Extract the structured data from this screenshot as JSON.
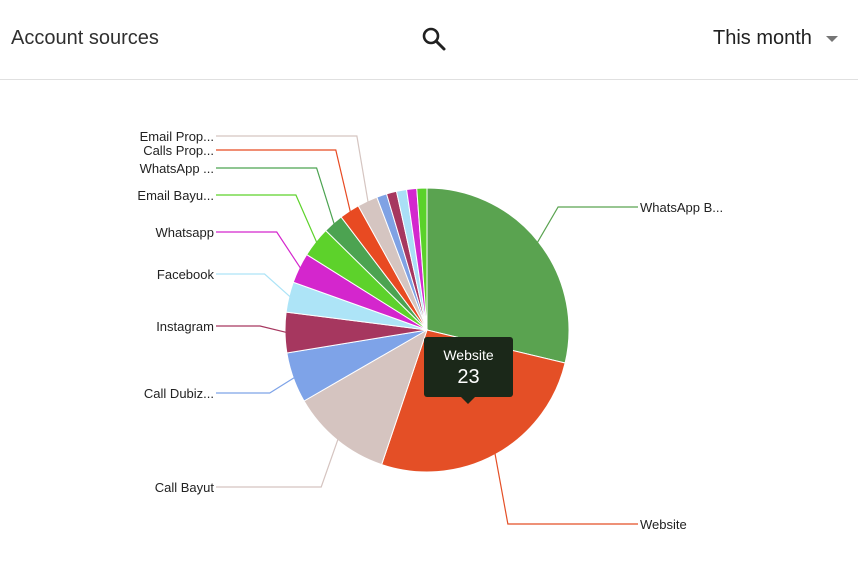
{
  "header": {
    "title": "Account sources",
    "search_icon": "search-icon",
    "period_label": "This month",
    "period_icon": "chevron-down-icon"
  },
  "tooltip": {
    "label": "Website",
    "value": "23"
  },
  "chart_data": {
    "type": "pie",
    "title": "",
    "categories": [
      "WhatsApp B...",
      "Website",
      "Call Bayut",
      "Call Dubiz...",
      "Instagram",
      "Facebook",
      "Whatsapp",
      "Email Bayu...",
      "WhatsApp ...",
      "Calls Prop...",
      "Email Prop...",
      "",
      "",
      "",
      "",
      ""
    ],
    "values": [
      25,
      23,
      10,
      5,
      4,
      3,
      3,
      3,
      2,
      2,
      2,
      1,
      1,
      1,
      1,
      1
    ],
    "colors": [
      "#5aa350",
      "#e44f26",
      "#d5c4c0",
      "#7ea3e8",
      "#a6375f",
      "#ade4f7",
      "#d426cd",
      "#5dd22b",
      "#4ca351",
      "#e84a22",
      "#d5c5c1",
      "#7fa2e4",
      "#a6375f",
      "#aadff6",
      "#d328ce",
      "#5ad22a"
    ],
    "legend_position": "labels-outside"
  }
}
